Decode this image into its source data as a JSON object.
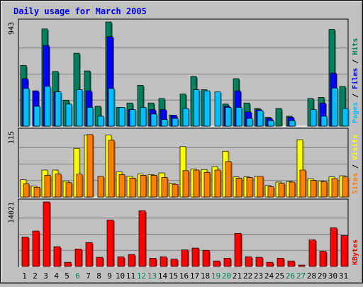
{
  "chart_data": [
    {
      "type": "bar",
      "title": "Daily usage for March 2005",
      "categories": [
        "1",
        "2",
        "3",
        "4",
        "5",
        "6",
        "7",
        "8",
        "9",
        "10",
        "11",
        "12",
        "13",
        "14",
        "15",
        "16",
        "17",
        "18",
        "19",
        "20",
        "21",
        "22",
        "23",
        "24",
        "25",
        "26",
        "27",
        "28",
        "29",
        "30",
        "31"
      ],
      "weekend_days": [
        "6",
        "12",
        "13",
        "19",
        "20",
        "26",
        "27"
      ],
      "y_tick": "943",
      "ylim": [
        0,
        943
      ],
      "series": [
        {
          "name": "Hits",
          "color": "#00805c",
          "values": [
            550,
            0,
            880,
            495,
            235,
            660,
            500,
            180,
            943,
            170,
            210,
            370,
            210,
            250,
            100,
            290,
            450,
            330,
            0,
            200,
            430,
            210,
            160,
            80,
            160,
            90,
            0,
            250,
            260,
            875,
            360
          ]
        },
        {
          "name": "Files",
          "color": "#0000ff",
          "values": [
            430,
            320,
            730,
            310,
            0,
            0,
            320,
            0,
            810,
            0,
            150,
            0,
            150,
            150,
            100,
            0,
            0,
            0,
            0,
            180,
            320,
            130,
            150,
            70,
            0,
            80,
            0,
            0,
            210,
            480,
            0
          ]
        },
        {
          "name": "Pages",
          "color": "#00c0ff",
          "values": [
            340,
            180,
            360,
            310,
            200,
            330,
            170,
            90,
            340,
            170,
            150,
            170,
            110,
            60,
            70,
            160,
            330,
            320,
            310,
            170,
            170,
            70,
            140,
            50,
            0,
            50,
            0,
            150,
            90,
            345,
            160
          ]
        }
      ]
    },
    {
      "type": "bar",
      "categories": [
        "1",
        "2",
        "3",
        "4",
        "5",
        "6",
        "7",
        "8",
        "9",
        "10",
        "11",
        "12",
        "13",
        "14",
        "15",
        "16",
        "17",
        "18",
        "19",
        "20",
        "21",
        "22",
        "23",
        "24",
        "25",
        "26",
        "27",
        "28",
        "29",
        "30",
        "31"
      ],
      "y_tick": "115",
      "ylim": [
        0,
        115
      ],
      "series": [
        {
          "name": "Visits",
          "color": "#ffff00",
          "values": [
            30,
            19,
            47,
            47,
            28,
            85,
            108,
            0,
            108,
            44,
            36,
            40,
            39,
            42,
            24,
            88,
            49,
            48,
            53,
            80,
            35,
            35,
            36,
            20,
            26,
            27,
            100,
            32,
            28,
            35,
            37
          ]
        },
        {
          "name": "Sites",
          "color": "#ff8000",
          "values": [
            23,
            17,
            38,
            40,
            25,
            40,
            109,
            36,
            99,
            39,
            33,
            38,
            38,
            34,
            22,
            46,
            47,
            43,
            47,
            62,
            33,
            34,
            36,
            18,
            24,
            26,
            47,
            29,
            27,
            32,
            35
          ]
        }
      ]
    },
    {
      "type": "bar",
      "categories": [
        "1",
        "2",
        "3",
        "4",
        "5",
        "6",
        "7",
        "8",
        "9",
        "10",
        "11",
        "12",
        "13",
        "14",
        "15",
        "16",
        "17",
        "18",
        "19",
        "20",
        "21",
        "22",
        "23",
        "24",
        "25",
        "26",
        "27",
        "28",
        "29",
        "30",
        "31"
      ],
      "y_tick": "14021",
      "ylim": [
        0,
        14021
      ],
      "series": [
        {
          "name": "KBytes",
          "color": "#ff0000",
          "values": [
            6400,
            7700,
            14021,
            4300,
            900,
            3800,
            5200,
            2000,
            10100,
            2100,
            2600,
            12100,
            1800,
            2100,
            1600,
            3600,
            4000,
            3500,
            1200,
            1800,
            7200,
            2100,
            2000,
            900,
            1800,
            1200,
            300,
            5800,
            3300,
            8400,
            6700
          ]
        }
      ]
    }
  ]
}
